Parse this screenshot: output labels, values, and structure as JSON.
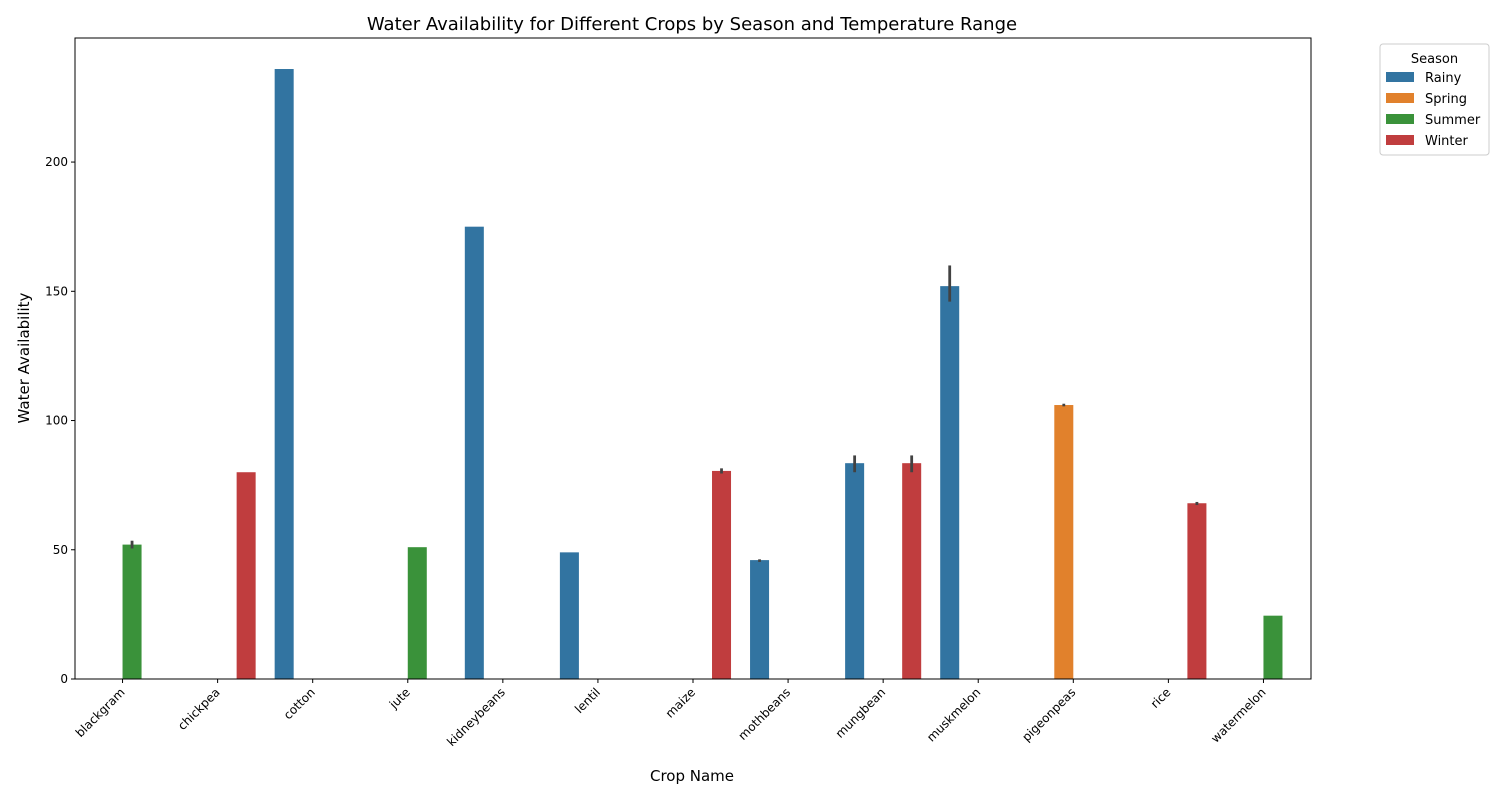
{
  "chart_data": {
    "type": "bar",
    "title": "Water Availability for Different Crops by Season and Temperature Range",
    "xlabel": "Crop Name",
    "ylabel": "Water Availability",
    "ylim": [
      0,
      248
    ],
    "yticks": [
      0,
      50,
      100,
      150,
      200
    ],
    "grid": false,
    "legend": {
      "title": "Season",
      "placement": "outside top-right",
      "entries": [
        "Rainy",
        "Spring",
        "Summer",
        "Winter"
      ]
    },
    "colors": {
      "Rainy": "#3274a1",
      "Spring": "#e1812c",
      "Summer": "#3a923a",
      "Winter": "#c03d3e",
      "errorbar": "#424242"
    },
    "categories": [
      "blackgram",
      "chickpea",
      "cotton",
      "jute",
      "kidneybeans",
      "lentil",
      "maize",
      "mothbeans",
      "mungbean",
      "muskmelon",
      "pigeonpeas",
      "rice",
      "watermelon"
    ],
    "series": [
      {
        "name": "Rainy",
        "values": [
          null,
          null,
          236,
          null,
          175,
          49,
          null,
          46,
          83.5,
          152,
          null,
          null,
          null
        ],
        "error_low": [
          null,
          null,
          null,
          null,
          null,
          null,
          null,
          45.3,
          80,
          146,
          null,
          null,
          null
        ],
        "error_high": [
          null,
          null,
          null,
          null,
          null,
          null,
          null,
          46.3,
          86.5,
          160,
          null,
          null,
          null
        ]
      },
      {
        "name": "Spring",
        "values": [
          null,
          null,
          null,
          null,
          null,
          null,
          null,
          null,
          null,
          null,
          106,
          null,
          null
        ],
        "error_low": [
          null,
          null,
          null,
          null,
          null,
          null,
          null,
          null,
          null,
          null,
          105.5,
          null,
          null
        ],
        "error_high": [
          null,
          null,
          null,
          null,
          null,
          null,
          null,
          null,
          null,
          null,
          106.5,
          null,
          null
        ]
      },
      {
        "name": "Summer",
        "values": [
          52,
          null,
          null,
          51,
          null,
          null,
          null,
          null,
          null,
          null,
          null,
          null,
          24.5
        ],
        "error_low": [
          50.5,
          null,
          null,
          null,
          null,
          null,
          null,
          null,
          null,
          null,
          null,
          null,
          null
        ],
        "error_high": [
          53.5,
          null,
          null,
          null,
          null,
          null,
          null,
          null,
          null,
          null,
          null,
          null,
          null
        ]
      },
      {
        "name": "Winter",
        "values": [
          null,
          80,
          null,
          null,
          null,
          null,
          80.5,
          null,
          83.5,
          null,
          null,
          68,
          null
        ],
        "error_low": [
          null,
          null,
          null,
          null,
          null,
          null,
          79.5,
          null,
          80,
          null,
          null,
          67.3,
          null
        ],
        "error_high": [
          null,
          null,
          null,
          null,
          null,
          null,
          81.5,
          null,
          86.5,
          null,
          null,
          68.5,
          null
        ]
      }
    ]
  }
}
